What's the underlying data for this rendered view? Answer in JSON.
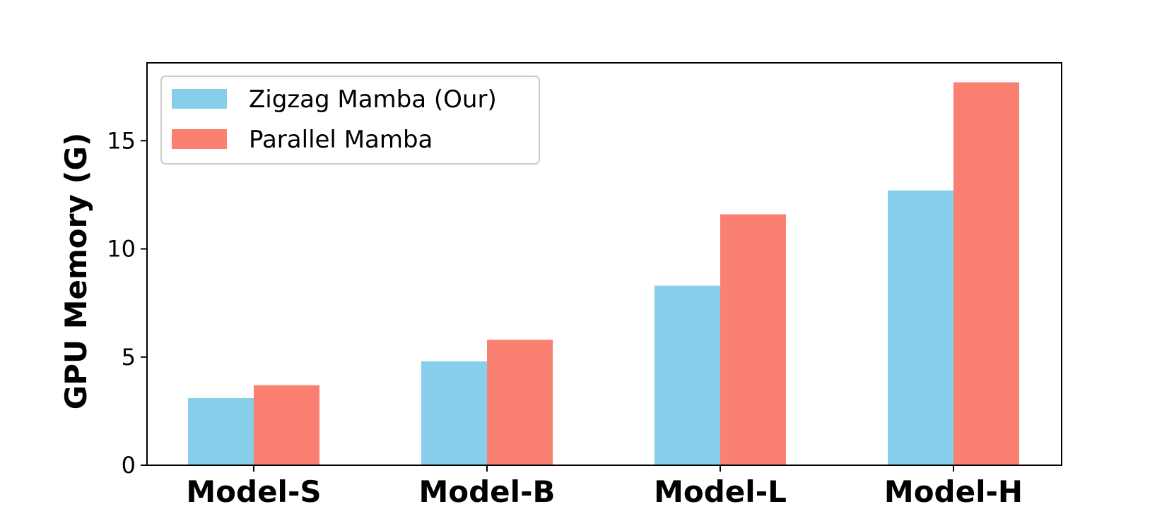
{
  "chart_data": {
    "type": "bar",
    "title": "",
    "xlabel": "",
    "ylabel": "GPU Memory (G)",
    "categories": [
      "Model-S",
      "Model-B",
      "Model-L",
      "Model-H"
    ],
    "series": [
      {
        "name": "Zigzag Mamba (Our)",
        "color": "#87ceeb",
        "values": [
          3.1,
          4.8,
          8.3,
          12.7
        ]
      },
      {
        "name": "Parallel Mamba",
        "color": "#fa8072",
        "values": [
          3.7,
          5.8,
          11.6,
          17.7
        ]
      }
    ],
    "ylim": [
      0,
      18.6
    ],
    "yticks": [
      0,
      5,
      10,
      15
    ],
    "ytick_labels": [
      "0",
      "5",
      "10",
      "15"
    ],
    "legend_position": "upper-left",
    "grid": false
  }
}
